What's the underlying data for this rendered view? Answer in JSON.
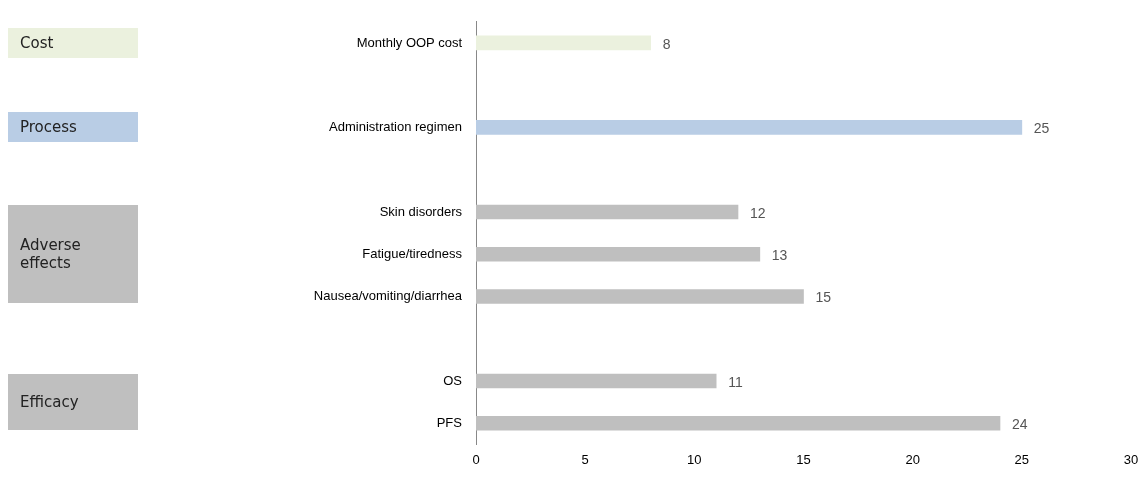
{
  "chart_data": {
    "type": "bar",
    "orientation": "horizontal",
    "categories": [
      "Monthly OOP cost",
      null,
      "Administration regimen",
      null,
      "Skin disorders",
      "Fatigue/tiredness",
      "Nausea/vomiting/diarrhea",
      null,
      "OS",
      "PFS"
    ],
    "values": [
      8,
      null,
      25,
      null,
      12,
      13,
      15,
      null,
      11,
      24
    ],
    "colors": [
      "#ebf1de",
      "#bfbfbf",
      "#b9cde5",
      "#bfbfbf",
      "#bfbfbf",
      "#bfbfbf",
      "#bfbfbf",
      "#bfbfbf",
      "#bfbfbf",
      "#bfbfbf"
    ],
    "xlim": [
      0,
      30
    ],
    "xticks": [
      0,
      5,
      10,
      15,
      20,
      25,
      30
    ],
    "data_labels": true,
    "grid": false,
    "legend": false,
    "annotations": [
      "Cost",
      "Process",
      "Adverse effects",
      "Efficacy"
    ]
  }
}
